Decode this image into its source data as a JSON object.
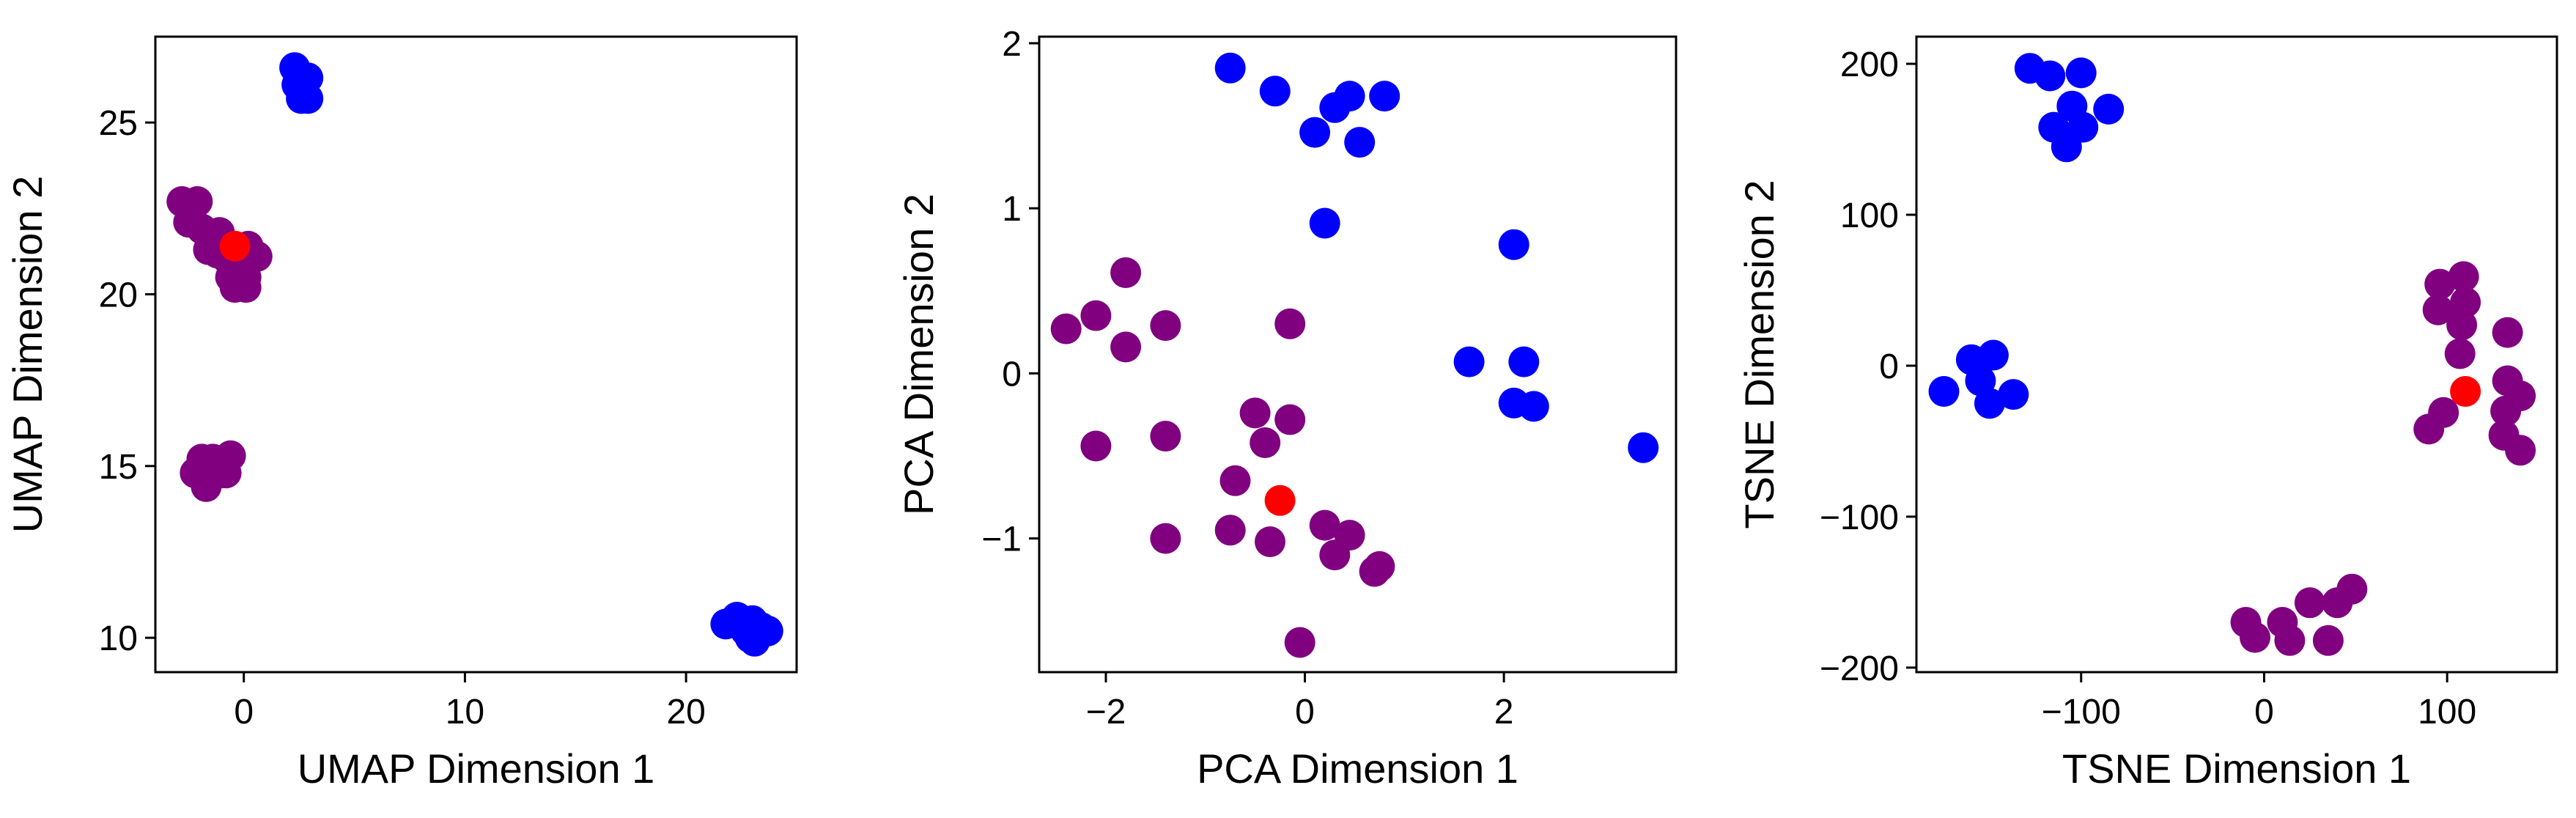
{
  "colors": {
    "series_a": "#800080",
    "series_b": "#0000ff",
    "highlight": "#ff0000"
  },
  "chart_data": [
    {
      "type": "scatter",
      "xlabel": "UMAP Dimension 1",
      "ylabel": "UMAP Dimension 2",
      "xlim": [
        -4,
        25
      ],
      "ylim": [
        9,
        27.5
      ],
      "xticks": [
        0,
        10,
        20
      ],
      "yticks": [
        10,
        15,
        20,
        25
      ],
      "grid": false,
      "series": [
        {
          "color": "#800080",
          "points": [
            [
              -2.8,
              22.7
            ],
            [
              -2.1,
              22.7
            ],
            [
              -2.5,
              22.1
            ],
            [
              -1.9,
              21.9
            ],
            [
              -1.1,
              21.8
            ],
            [
              -1.6,
              21.3
            ],
            [
              -1.2,
              21.2
            ],
            [
              -0.7,
              21.0
            ],
            [
              -0.3,
              21.1
            ],
            [
              0.2,
              21.4
            ],
            [
              0.6,
              21.1
            ],
            [
              -0.6,
              20.5
            ],
            [
              -0.2,
              20.8
            ],
            [
              0.1,
              20.5
            ],
            [
              -0.4,
              20.2
            ],
            [
              0.1,
              20.2
            ],
            [
              -1.9,
              15.2
            ],
            [
              -1.4,
              15.2
            ],
            [
              -0.6,
              15.3
            ],
            [
              -2.2,
              14.8
            ],
            [
              -1.5,
              14.7
            ],
            [
              -1.0,
              14.8
            ],
            [
              -0.8,
              14.8
            ],
            [
              -1.7,
              14.4
            ]
          ]
        },
        {
          "color": "#0000ff",
          "points": [
            [
              2.3,
              26.6
            ],
            [
              2.9,
              26.3
            ],
            [
              2.4,
              26.1
            ],
            [
              2.7,
              25.9
            ],
            [
              2.6,
              25.7
            ],
            [
              2.9,
              25.7
            ],
            [
              21.8,
              10.4
            ],
            [
              22.3,
              10.6
            ],
            [
              22.7,
              10.2
            ],
            [
              23.0,
              10.5
            ],
            [
              23.4,
              10.3
            ],
            [
              22.4,
              10.4
            ],
            [
              22.9,
              10.0
            ],
            [
              23.1,
              9.9
            ],
            [
              23.7,
              10.2
            ],
            [
              22.6,
              10.3
            ]
          ]
        },
        {
          "color": "#ff0000",
          "points": [
            [
              -0.4,
              21.4
            ]
          ]
        }
      ]
    },
    {
      "type": "scatter",
      "xlabel": "PCA Dimension 1",
      "ylabel": "PCA Dimension 2",
      "xlim": [
        -2.67,
        3.73
      ],
      "ylim": [
        -1.81,
        2.04
      ],
      "xticks": [
        -2,
        0,
        2
      ],
      "yticks": [
        -1,
        0,
        1,
        2
      ],
      "grid": false,
      "series": [
        {
          "color": "#800080",
          "points": [
            [
              -2.4,
              0.27
            ],
            [
              -2.1,
              0.35
            ],
            [
              -1.8,
              0.61
            ],
            [
              -1.8,
              0.16
            ],
            [
              -1.4,
              0.29
            ],
            [
              -2.1,
              -0.44
            ],
            [
              -1.4,
              -0.38
            ],
            [
              -1.4,
              -1.0
            ],
            [
              -0.75,
              -0.95
            ],
            [
              -0.7,
              -0.65
            ],
            [
              -0.5,
              -0.24
            ],
            [
              -0.4,
              -0.42
            ],
            [
              -0.15,
              0.3
            ],
            [
              -0.15,
              -0.28
            ],
            [
              -0.35,
              -1.02
            ],
            [
              0.2,
              -0.92
            ],
            [
              0.3,
              -1.1
            ],
            [
              0.45,
              -0.98
            ],
            [
              0.75,
              -1.17
            ],
            [
              0.7,
              -1.2
            ],
            [
              -0.05,
              -1.63
            ]
          ]
        },
        {
          "color": "#0000ff",
          "points": [
            [
              -0.75,
              1.85
            ],
            [
              -0.3,
              1.71
            ],
            [
              0.3,
              1.61
            ],
            [
              0.45,
              1.68
            ],
            [
              0.8,
              1.68
            ],
            [
              0.1,
              1.46
            ],
            [
              0.55,
              1.4
            ],
            [
              0.2,
              0.91
            ],
            [
              2.1,
              0.78
            ],
            [
              1.65,
              0.07
            ],
            [
              2.2,
              0.07
            ],
            [
              2.1,
              -0.18
            ],
            [
              2.3,
              -0.2
            ],
            [
              3.4,
              -0.45
            ]
          ]
        },
        {
          "color": "#ff0000",
          "points": [
            [
              -0.25,
              -0.77
            ]
          ]
        }
      ]
    },
    {
      "type": "scatter",
      "xlabel": "TSNE Dimension 1",
      "ylabel": "TSNE Dimension 2",
      "xlim": [
        -190,
        160
      ],
      "ylim": [
        -203,
        218
      ],
      "xticks": [
        -100,
        0,
        100
      ],
      "yticks": [
        -200,
        -100,
        0,
        100,
        200
      ],
      "grid": false,
      "series": [
        {
          "color": "#800080",
          "points": [
            [
              96,
              54
            ],
            [
              109,
              59
            ],
            [
              110,
              42
            ],
            [
              95,
              37
            ],
            [
              108,
              27
            ],
            [
              107,
              8
            ],
            [
              133,
              22
            ],
            [
              133,
              -10
            ],
            [
              140,
              -20
            ],
            [
              132,
              -30
            ],
            [
              131,
              -46
            ],
            [
              140,
              -56
            ],
            [
              98,
              -31
            ],
            [
              90,
              -42
            ],
            [
              -10,
              -170
            ],
            [
              -5,
              -180
            ],
            [
              10,
              -170
            ],
            [
              14,
              -182
            ],
            [
              25,
              -157
            ],
            [
              35,
              -182
            ],
            [
              40,
              -157
            ],
            [
              48,
              -148
            ]
          ]
        },
        {
          "color": "#0000ff",
          "points": [
            [
              -128,
              197
            ],
            [
              -117,
              192
            ],
            [
              -100,
              194
            ],
            [
              -105,
              172
            ],
            [
              -115,
              158
            ],
            [
              -99,
              158
            ],
            [
              -85,
              170
            ],
            [
              -108,
              145
            ],
            [
              -175,
              -17
            ],
            [
              -160,
              4
            ],
            [
              -155,
              -10
            ],
            [
              -148,
              7
            ],
            [
              -150,
              -25
            ],
            [
              -137,
              -19
            ]
          ]
        },
        {
          "color": "#ff0000",
          "points": [
            [
              110,
              -17
            ]
          ]
        }
      ]
    }
  ]
}
